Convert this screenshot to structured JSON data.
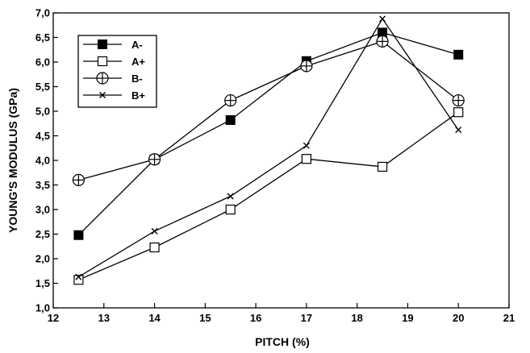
{
  "chart_data": {
    "type": "line",
    "xlabel": "PITCH (%)",
    "ylabel": "YOUNG'S MODULUS (GPa)",
    "xlim": [
      12,
      21
    ],
    "ylim": [
      1.0,
      7.0
    ],
    "x_ticks": [
      "12",
      "13",
      "14",
      "15",
      "16",
      "17",
      "18",
      "19",
      "20",
      "21"
    ],
    "y_ticks": [
      "1,0",
      "1,5",
      "2,0",
      "2,5",
      "3,0",
      "3,5",
      "4,0",
      "4,5",
      "5,0",
      "5,5",
      "6,0",
      "6,5",
      "7,0"
    ],
    "x_tick_values": [
      12,
      13,
      14,
      15,
      16,
      17,
      18,
      19,
      20,
      21
    ],
    "y_tick_values": [
      1.0,
      1.5,
      2.0,
      2.5,
      3.0,
      3.5,
      4.0,
      4.5,
      5.0,
      5.5,
      6.0,
      6.5,
      7.0
    ],
    "grid": false,
    "legend_position": "top-left",
    "series": [
      {
        "name": "A-",
        "marker": "filled-square",
        "x": [
          12.5,
          14,
          15.5,
          17,
          18.5,
          20
        ],
        "y": [
          2.48,
          4.02,
          4.82,
          6.02,
          6.6,
          6.15
        ]
      },
      {
        "name": "A+",
        "marker": "open-square",
        "x": [
          12.5,
          14,
          15.5,
          17,
          18.5,
          20
        ],
        "y": [
          1.57,
          2.23,
          3.0,
          4.03,
          3.87,
          4.98
        ]
      },
      {
        "name": "B-",
        "marker": "circle-plus",
        "x": [
          12.5,
          14,
          15.5,
          17,
          18.5,
          20
        ],
        "y": [
          3.6,
          4.02,
          5.22,
          5.92,
          6.42,
          5.22
        ]
      },
      {
        "name": "B+",
        "marker": "x",
        "x": [
          12.5,
          14,
          15.5,
          17,
          18.5,
          20
        ],
        "y": [
          1.63,
          2.56,
          3.27,
          4.3,
          6.88,
          4.62
        ]
      }
    ]
  }
}
